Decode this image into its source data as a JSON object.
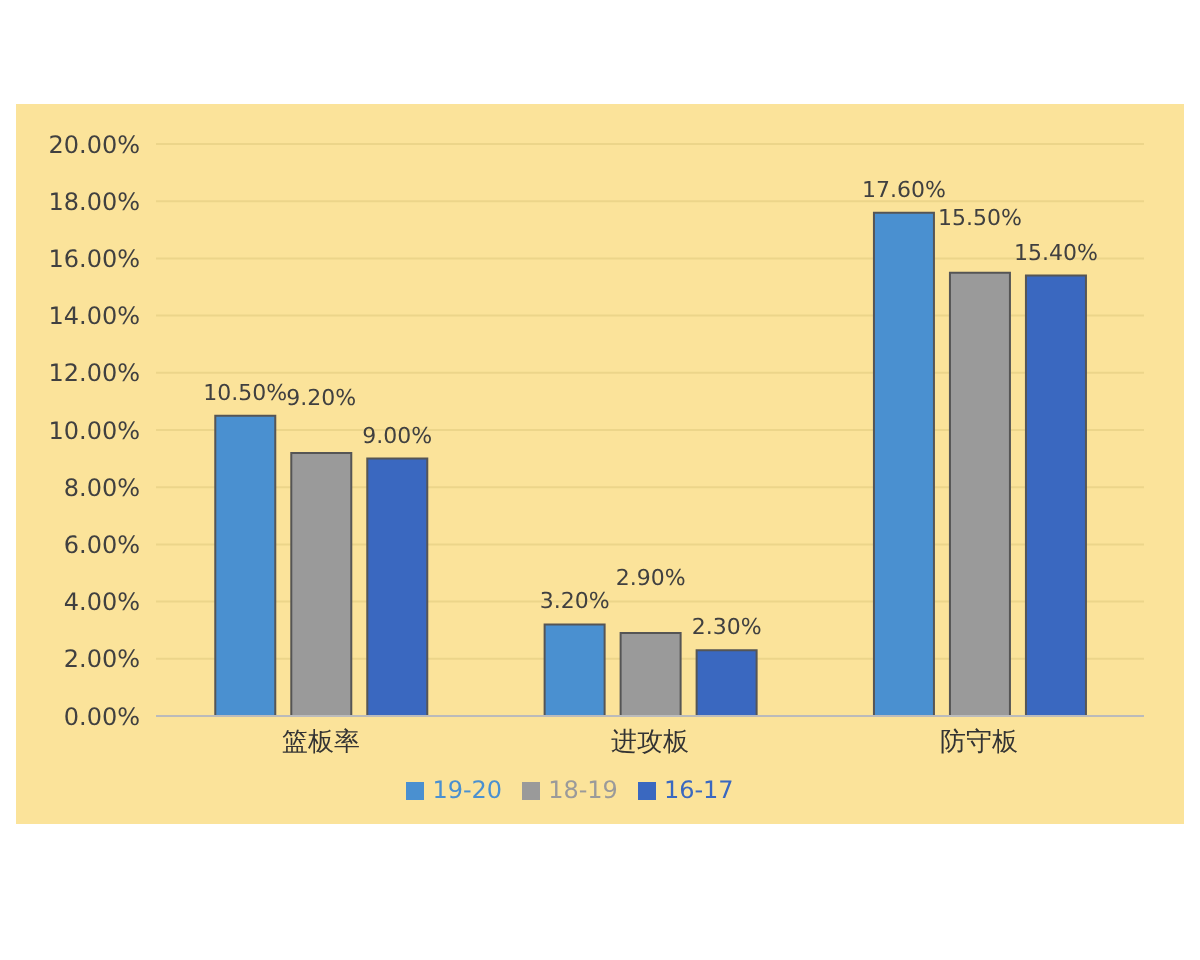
{
  "chart_data": {
    "type": "bar",
    "categories": [
      "篮板率",
      "进攻板",
      "防守板"
    ],
    "series": [
      {
        "name": "19-20",
        "color": "#4a90d0",
        "values": [
          10.5,
          3.2,
          17.6
        ],
        "value_labels": [
          "10.50%",
          "3.20%",
          "17.60%"
        ]
      },
      {
        "name": "18-19",
        "color": "#9a9a9a",
        "values": [
          9.2,
          2.9,
          15.5
        ],
        "value_labels": [
          "9.20%",
          "2.90%",
          "15.50%"
        ]
      },
      {
        "name": "16-17",
        "color": "#3a68c0",
        "values": [
          9.0,
          2.3,
          15.4
        ],
        "value_labels": [
          "9.00%",
          "2.30%",
          "15.40%"
        ]
      }
    ],
    "ylim": [
      0,
      20
    ],
    "yticks": [
      {
        "value": 0,
        "label": "0.00%"
      },
      {
        "value": 2,
        "label": "2.00%"
      },
      {
        "value": 4,
        "label": "4.00%"
      },
      {
        "value": 6,
        "label": "6.00%"
      },
      {
        "value": 8,
        "label": "8.00%"
      },
      {
        "value": 10,
        "label": "10.00%"
      },
      {
        "value": 12,
        "label": "12.00%"
      },
      {
        "value": 14,
        "label": "14.00%"
      },
      {
        "value": 16,
        "label": "16.00%"
      },
      {
        "value": 18,
        "label": "18.00%"
      },
      {
        "value": 20,
        "label": "20.00%"
      }
    ],
    "grid": "y",
    "legend": "bottom"
  }
}
